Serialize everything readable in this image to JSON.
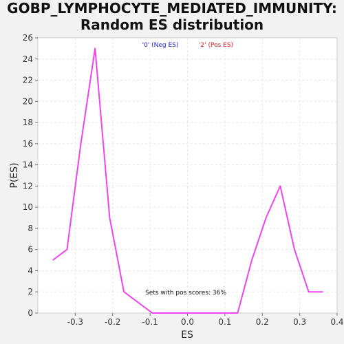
{
  "chart_data": {
    "type": "line",
    "title_line1": "GOBP_LYMPHOCYTE_MEDIATED_IMMUNITY:",
    "title_line2": "Random ES distribution",
    "xlabel": "ES",
    "ylabel": "P(ES)",
    "xlim": [
      -0.4,
      0.4
    ],
    "ylim": [
      0,
      26
    ],
    "x_ticks": [
      "-0.3",
      "-0.2",
      "-0.1",
      "0.0",
      "0.1",
      "0.2",
      "0.3",
      "0.4"
    ],
    "y_ticks": [
      "0",
      "2",
      "4",
      "6",
      "8",
      "10",
      "12",
      "14",
      "16",
      "18",
      "20",
      "22",
      "24",
      "26"
    ],
    "grid": true,
    "legend": [
      {
        "label": "'0' (Neg ES)",
        "color": "#1a1acc"
      },
      {
        "label": "'2' (Pos ES)",
        "color": "#e02020"
      }
    ],
    "annotation": "Sets with pos scores: 36%",
    "series": [
      {
        "color": "#ee44ee",
        "x": [
          -0.36,
          -0.322,
          -0.285,
          -0.247,
          -0.208,
          -0.17,
          -0.132,
          -0.094,
          -0.056,
          -0.018,
          0.02,
          0.058,
          0.096,
          0.134,
          0.172,
          0.21,
          0.248,
          0.286,
          0.324,
          0.362
        ],
        "y": [
          5,
          6,
          16,
          25,
          9,
          2,
          1,
          0,
          0,
          0,
          0,
          0,
          0,
          0,
          5,
          9,
          12,
          6,
          2,
          2
        ]
      }
    ]
  }
}
